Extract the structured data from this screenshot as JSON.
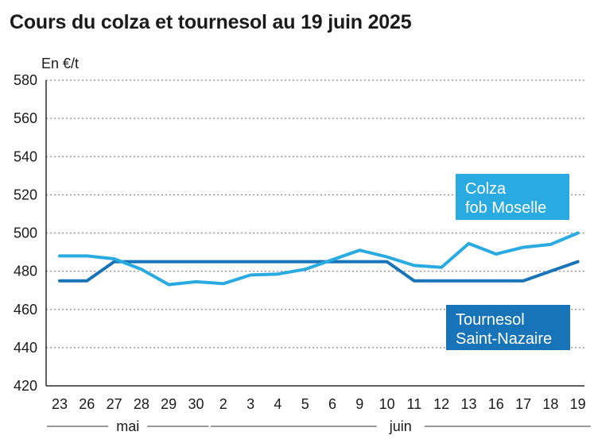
{
  "chart_data": {
    "type": "line",
    "title": "Cours du colza et tournesol au 19 juin 2025",
    "ylabel": "En €/t",
    "xlabel": "",
    "ylim": [
      420,
      580
    ],
    "yticks": [
      420,
      440,
      460,
      480,
      500,
      520,
      540,
      560,
      580
    ],
    "grid": true,
    "categories": [
      "23",
      "26",
      "27",
      "28",
      "29",
      "30",
      "2",
      "3",
      "4",
      "5",
      "6",
      "9",
      "10",
      "11",
      "12",
      "13",
      "16",
      "17",
      "18",
      "19"
    ],
    "month_groups": [
      {
        "label": "mai",
        "start": 0,
        "end": 5
      },
      {
        "label": "juin",
        "start": 6,
        "end": 19
      }
    ],
    "series": [
      {
        "name_lines": [
          "Colza",
          "fob Moselle"
        ],
        "color": "#29abe2",
        "values": [
          488,
          488,
          486.5,
          481,
          473,
          474.5,
          473.5,
          478,
          478.5,
          481,
          486,
          491,
          487.5,
          483,
          482,
          494.5,
          489,
          492.5,
          494,
          500
        ]
      },
      {
        "name_lines": [
          "Tournesol",
          "Saint-Nazaire"
        ],
        "color": "#1874b8",
        "values": [
          475,
          475,
          485,
          485,
          485,
          485,
          485,
          485,
          485,
          485,
          485,
          485,
          485,
          475,
          475,
          475,
          475,
          475,
          480,
          485
        ]
      }
    ]
  }
}
